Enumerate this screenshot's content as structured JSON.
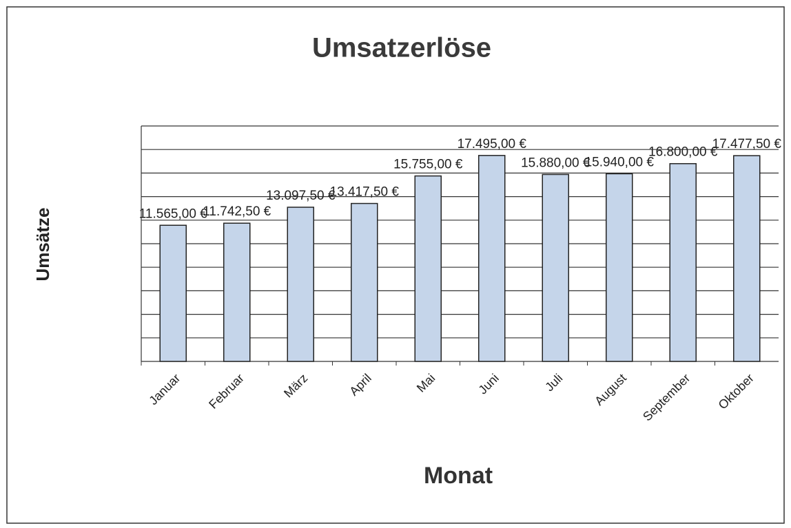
{
  "chart_data": {
    "type": "bar",
    "title": "Umsatzerlöse",
    "y_label": "Umsätze",
    "x_label": "Monat",
    "categories": [
      "Januar",
      "Februar",
      "März",
      "April",
      "Mai",
      "Juni",
      "Juli",
      "August",
      "September",
      "Oktober"
    ],
    "values": [
      11565,
      11742.5,
      13097.5,
      13417.5,
      15755,
      17495,
      15880,
      15940,
      16800,
      17477.5
    ],
    "value_labels": [
      "11.565,00 €",
      "11.742,50 €",
      "13.097,50 €",
      "13.417,50 €",
      "15.755,00 €",
      "17.495,00 €",
      "15.880,00 €",
      "15.940,00 €",
      "16.800,00 €",
      "17.477,50 €"
    ],
    "color": "#c5d5ea",
    "ylim": [
      0,
      20000
    ],
    "yticks": [
      0,
      2000,
      4000,
      6000,
      8000,
      10000,
      12000,
      14000,
      16000,
      18000,
      20000
    ],
    "grid": true
  }
}
